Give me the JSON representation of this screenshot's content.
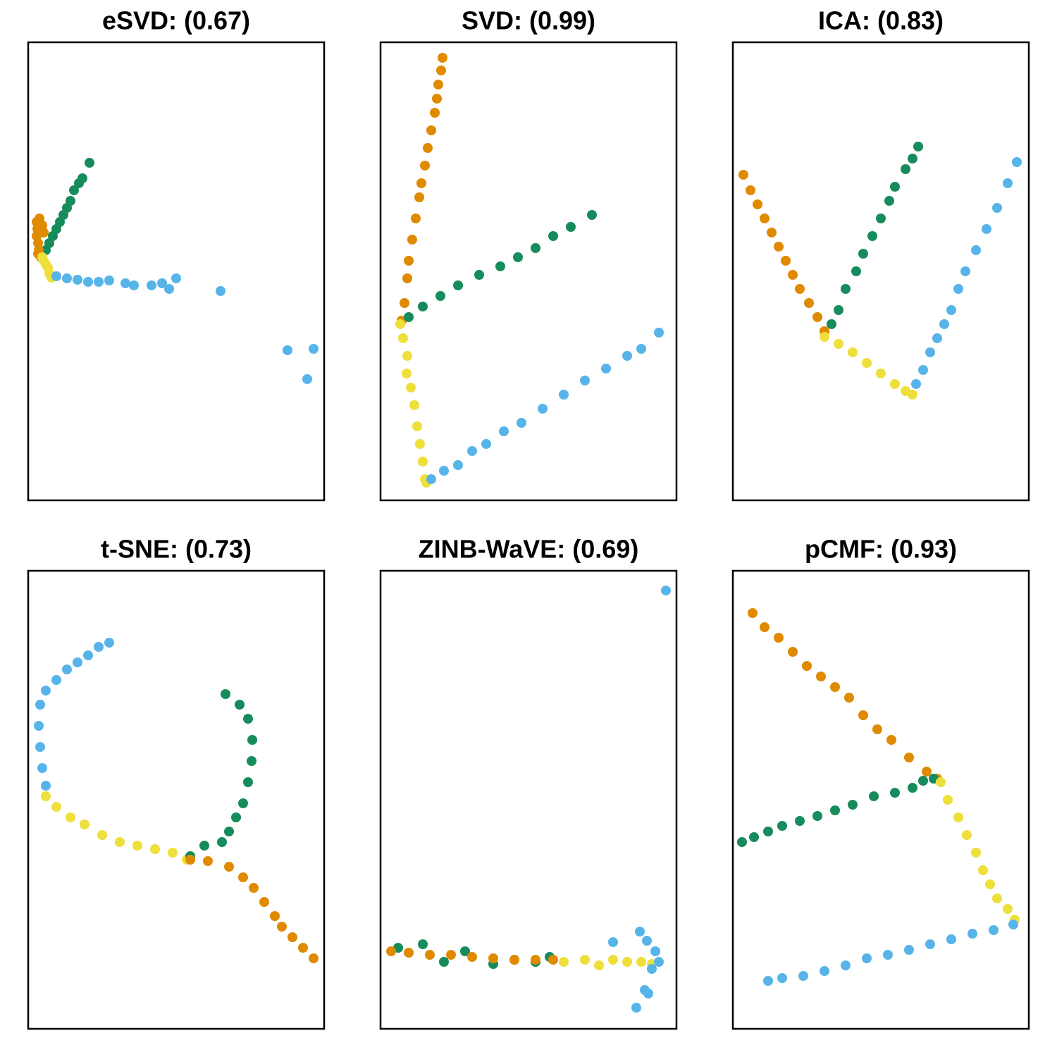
{
  "chart_data": [
    {
      "type": "scatter",
      "title": "eSVD: (0.67)",
      "xlim": [
        0,
        420
      ],
      "ylim": [
        0,
        650
      ],
      "series": [
        {
          "color": "#168C5C",
          "x": [
            25,
            30,
            35,
            40,
            45,
            50,
            55,
            60,
            65,
            72,
            77,
            87
          ],
          "y": [
            355,
            365,
            375,
            385,
            395,
            405,
            415,
            425,
            440,
            450,
            457,
            479
          ]
        },
        {
          "color": "#E08A00",
          "x": [
            12,
            13,
            12,
            14,
            15,
            18,
            20,
            22,
            16,
            14
          ],
          "y": [
            395,
            385,
            375,
            365,
            355,
            345,
            390,
            380,
            400,
            350
          ]
        },
        {
          "color": "#EEDF3A",
          "x": [
            20,
            22,
            25,
            28,
            30,
            33
          ],
          "y": [
            345,
            340,
            335,
            330,
            322,
            316
          ]
        },
        {
          "color": "#56B4E9",
          "x": [
            40,
            55,
            70,
            85,
            100,
            115,
            138,
            150,
            175,
            190,
            200,
            210,
            273,
            368,
            405,
            396
          ],
          "y": [
            318,
            315,
            313,
            310,
            310,
            312,
            308,
            305,
            305,
            308,
            300,
            315,
            297,
            213,
            215,
            172
          ]
        }
      ]
    },
    {
      "type": "scatter",
      "title": "SVD: (0.99)",
      "xlim": [
        0,
        420
      ],
      "ylim": [
        0,
        650
      ],
      "series": [
        {
          "color": "#E08A00",
          "x": [
            88,
            86,
            82,
            80,
            77,
            72,
            67,
            63,
            58,
            55,
            50,
            45,
            40,
            38,
            34,
            30
          ],
          "y": [
            628,
            610,
            590,
            570,
            550,
            525,
            500,
            475,
            450,
            430,
            400,
            370,
            340,
            315,
            280,
            255
          ]
        },
        {
          "color": "#168C5C",
          "x": [
            40,
            60,
            85,
            110,
            140,
            170,
            195,
            220,
            245,
            270,
            300
          ],
          "y": [
            260,
            275,
            290,
            305,
            320,
            332,
            345,
            358,
            375,
            388,
            405
          ]
        },
        {
          "color": "#EEDF3A",
          "x": [
            28,
            32,
            38,
            37,
            43,
            48,
            52,
            56,
            60,
            63,
            65
          ],
          "y": [
            250,
            230,
            205,
            180,
            160,
            135,
            105,
            80,
            55,
            30,
            25
          ]
        },
        {
          "color": "#56B4E9",
          "x": [
            72,
            90,
            110,
            130,
            150,
            175,
            200,
            230,
            260,
            290,
            320,
            350,
            370,
            395
          ],
          "y": [
            30,
            42,
            50,
            70,
            80,
            98,
            110,
            130,
            150,
            170,
            187,
            205,
            215,
            238
          ]
        }
      ]
    },
    {
      "type": "scatter",
      "title": "ICA: (0.83)",
      "xlim": [
        0,
        420
      ],
      "ylim": [
        0,
        650
      ],
      "series": [
        {
          "color": "#E08A00",
          "x": [
            15,
            25,
            35,
            45,
            55,
            65,
            75,
            85,
            95,
            108,
            120,
            130
          ],
          "y": [
            462,
            440,
            420,
            400,
            380,
            360,
            340,
            320,
            300,
            280,
            260,
            240
          ]
        },
        {
          "color": "#168C5C",
          "x": [
            140,
            150,
            160,
            175,
            185,
            198,
            210,
            222,
            230,
            245,
            255,
            263
          ],
          "y": [
            250,
            270,
            300,
            325,
            350,
            375,
            400,
            425,
            445,
            470,
            485,
            502
          ]
        },
        {
          "color": "#EEDF3A",
          "x": [
            130,
            150,
            170,
            190,
            210,
            230,
            245,
            255
          ],
          "y": [
            232,
            222,
            210,
            195,
            180,
            165,
            155,
            150
          ]
        },
        {
          "color": "#56B4E9",
          "x": [
            260,
            270,
            280,
            290,
            300,
            310,
            320,
            330,
            345,
            360,
            375,
            390,
            403
          ],
          "y": [
            165,
            185,
            210,
            230,
            250,
            270,
            300,
            325,
            355,
            385,
            415,
            450,
            480
          ]
        }
      ]
    },
    {
      "type": "scatter",
      "title": "t-SNE: (0.73)",
      "xlim": [
        0,
        420
      ],
      "ylim": [
        0,
        650
      ],
      "series": [
        {
          "color": "#56B4E9",
          "x": [
            25,
            20,
            17,
            15,
            17,
            25,
            40,
            55,
            70,
            85,
            100,
            115
          ],
          "y": [
            345,
            370,
            400,
            430,
            460,
            480,
            495,
            510,
            520,
            530,
            542,
            548
          ]
        },
        {
          "color": "#EEDF3A",
          "x": [
            25,
            40,
            60,
            80,
            105,
            130,
            155,
            180,
            205,
            225
          ],
          "y": [
            330,
            315,
            300,
            290,
            275,
            265,
            260,
            255,
            250,
            240
          ]
        },
        {
          "color": "#168C5C",
          "x": [
            230,
            250,
            275,
            285,
            295,
            305,
            312,
            317,
            318,
            312,
            300,
            280
          ],
          "y": [
            245,
            260,
            265,
            280,
            300,
            320,
            350,
            380,
            410,
            440,
            460,
            475
          ]
        },
        {
          "color": "#E08A00",
          "x": [
            230,
            255,
            285,
            305,
            320,
            335,
            350,
            360,
            375,
            390,
            405
          ],
          "y": [
            240,
            238,
            230,
            215,
            200,
            180,
            160,
            145,
            130,
            115,
            100
          ]
        }
      ]
    },
    {
      "type": "scatter",
      "title": "ZINB-WaVE: (0.69)",
      "xlim": [
        0,
        420
      ],
      "ylim": [
        0,
        650
      ],
      "series": [
        {
          "color": "#168C5C",
          "x": [
            25,
            60,
            90,
            120,
            160,
            190,
            220,
            240
          ],
          "y": [
            115,
            120,
            95,
            110,
            92,
            98,
            95,
            102
          ]
        },
        {
          "color": "#E08A00",
          "x": [
            15,
            40,
            70,
            100,
            130,
            160,
            190,
            220,
            245
          ],
          "y": [
            110,
            108,
            105,
            105,
            102,
            100,
            98,
            98,
            98
          ]
        },
        {
          "color": "#EEDF3A",
          "x": [
            260,
            290,
            310,
            330,
            350,
            370,
            385
          ],
          "y": [
            95,
            98,
            90,
            98,
            95,
            95,
            92
          ]
        },
        {
          "color": "#56B4E9",
          "x": [
            405,
            330,
            368,
            378,
            390,
            395,
            385,
            375,
            380,
            363
          ],
          "y": [
            622,
            123,
            138,
            125,
            110,
            95,
            85,
            55,
            50,
            30
          ]
        }
      ]
    },
    {
      "type": "scatter",
      "title": "pCMF: (0.93)",
      "xlim": [
        0,
        420
      ],
      "ylim": [
        0,
        650
      ],
      "series": [
        {
          "color": "#E08A00",
          "x": [
            28,
            45,
            65,
            85,
            105,
            125,
            145,
            165,
            185,
            205,
            225,
            250,
            275,
            290
          ],
          "y": [
            590,
            570,
            555,
            535,
            515,
            500,
            485,
            470,
            445,
            425,
            410,
            385,
            365,
            355
          ]
        },
        {
          "color": "#168C5C",
          "x": [
            13,
            30,
            50,
            70,
            95,
            120,
            145,
            170,
            200,
            230,
            255,
            270,
            285
          ],
          "y": [
            265,
            272,
            280,
            288,
            295,
            302,
            310,
            318,
            330,
            335,
            342,
            352,
            355
          ]
        },
        {
          "color": "#EEDF3A",
          "x": [
            295,
            305,
            320,
            332,
            345,
            355,
            365,
            375,
            390,
            400
          ],
          "y": [
            350,
            325,
            300,
            275,
            250,
            225,
            205,
            185,
            170,
            155
          ]
        },
        {
          "color": "#56B4E9",
          "x": [
            50,
            70,
            100,
            130,
            160,
            190,
            220,
            250,
            280,
            310,
            340,
            370,
            398
          ],
          "y": [
            68,
            72,
            75,
            82,
            90,
            100,
            105,
            112,
            120,
            127,
            135,
            140,
            148
          ]
        }
      ]
    }
  ]
}
